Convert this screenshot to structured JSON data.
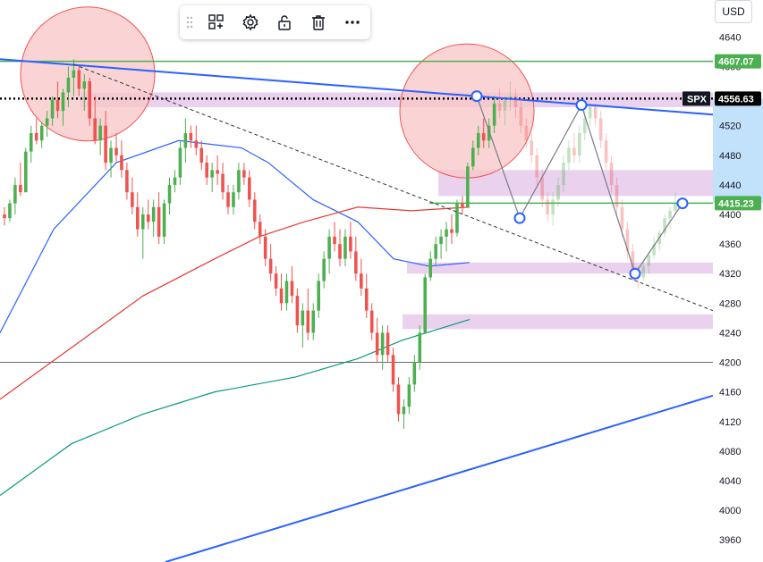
{
  "currency_button": "USD",
  "toolbar": {
    "items": [
      {
        "name": "grip-handle-icon"
      },
      {
        "name": "object-tree-icon"
      },
      {
        "name": "settings-icon"
      },
      {
        "name": "unlock-icon"
      },
      {
        "name": "delete-icon"
      },
      {
        "name": "more-icon"
      }
    ]
  },
  "colors": {
    "up": "#26a69a",
    "up_candle": "#4caf50",
    "down": "#ef5350",
    "trend_blue": "#2962ff",
    "zone": "#e1bee7",
    "circle": "#f8c6c6",
    "hline_green": "#4caf50",
    "ema_blue": "#2962ff",
    "ema_red": "#e53935",
    "ema_green": "#089981"
  },
  "chart_data": {
    "type": "candlestick",
    "symbol": "SPX",
    "y_ticks": [
      3960,
      4000,
      4040,
      4080,
      4120,
      4160,
      4200,
      4240,
      4280,
      4320,
      4360,
      4400,
      4440,
      4480,
      4520,
      4560,
      4600,
      4640
    ],
    "ylim": [
      3930,
      4690
    ],
    "price_labels": [
      {
        "text": "4607.07",
        "value": 4607.07,
        "style": "green"
      },
      {
        "text": "4556.63",
        "value": 4556.63,
        "style": "black"
      },
      {
        "text": "4415.23",
        "value": 4415.23,
        "style": "green"
      },
      {
        "text": "SPX",
        "value": 4556.63,
        "style": "tag"
      }
    ],
    "candles": [
      [
        4400,
        4410,
        4385,
        4395
      ],
      [
        4395,
        4420,
        4390,
        4415
      ],
      [
        4415,
        4450,
        4400,
        4440
      ],
      [
        4440,
        4470,
        4425,
        4430
      ],
      [
        4430,
        4490,
        4430,
        4485
      ],
      [
        4485,
        4520,
        4470,
        4510
      ],
      [
        4510,
        4530,
        4495,
        4500
      ],
      [
        4500,
        4525,
        4490,
        4520
      ],
      [
        4520,
        4540,
        4505,
        4530
      ],
      [
        4530,
        4560,
        4520,
        4555
      ],
      [
        4555,
        4580,
        4530,
        4540
      ],
      [
        4540,
        4570,
        4520,
        4565
      ],
      [
        4565,
        4600,
        4545,
        4585
      ],
      [
        4585,
        4610,
        4560,
        4595
      ],
      [
        4595,
        4600,
        4560,
        4570
      ],
      [
        4570,
        4590,
        4540,
        4580
      ],
      [
        4580,
        4585,
        4520,
        4530
      ],
      [
        4530,
        4560,
        4495,
        4500
      ],
      [
        4500,
        4530,
        4480,
        4520
      ],
      [
        4520,
        4540,
        4460,
        4470
      ],
      [
        4470,
        4500,
        4450,
        4490
      ],
      [
        4490,
        4510,
        4470,
        4480
      ],
      [
        4480,
        4500,
        4450,
        4460
      ],
      [
        4460,
        4470,
        4420,
        4430
      ],
      [
        4430,
        4450,
        4400,
        4410
      ],
      [
        4410,
        4430,
        4370,
        4380
      ],
      [
        4380,
        4410,
        4340,
        4400
      ],
      [
        4400,
        4420,
        4380,
        4390
      ],
      [
        4390,
        4420,
        4370,
        4410
      ],
      [
        4410,
        4430,
        4360,
        4370
      ],
      [
        4370,
        4420,
        4360,
        4415
      ],
      [
        4415,
        4450,
        4400,
        4440
      ],
      [
        4440,
        4460,
        4430,
        4450
      ],
      [
        4450,
        4500,
        4440,
        4490
      ],
      [
        4490,
        4530,
        4470,
        4510
      ],
      [
        4510,
        4520,
        4490,
        4500
      ],
      [
        4500,
        4520,
        4480,
        4490
      ],
      [
        4490,
        4500,
        4460,
        4470
      ],
      [
        4470,
        4480,
        4440,
        4450
      ],
      [
        4450,
        4470,
        4430,
        4460
      ],
      [
        4460,
        4480,
        4440,
        4455
      ],
      [
        4455,
        4470,
        4420,
        4430
      ],
      [
        4430,
        4440,
        4400,
        4410
      ],
      [
        4410,
        4440,
        4400,
        4430
      ],
      [
        4430,
        4470,
        4420,
        4460
      ],
      [
        4460,
        4470,
        4440,
        4450
      ],
      [
        4450,
        4460,
        4410,
        4420
      ],
      [
        4420,
        4430,
        4380,
        4390
      ],
      [
        4390,
        4400,
        4360,
        4370
      ],
      [
        4370,
        4380,
        4330,
        4340
      ],
      [
        4340,
        4360,
        4310,
        4320
      ],
      [
        4320,
        4330,
        4290,
        4300
      ],
      [
        4300,
        4320,
        4270,
        4280
      ],
      [
        4280,
        4320,
        4270,
        4310
      ],
      [
        4310,
        4330,
        4280,
        4290
      ],
      [
        4290,
        4300,
        4240,
        4250
      ],
      [
        4250,
        4280,
        4220,
        4270
      ],
      [
        4270,
        4300,
        4230,
        4240
      ],
      [
        4240,
        4280,
        4230,
        4270
      ],
      [
        4270,
        4320,
        4260,
        4310
      ],
      [
        4310,
        4350,
        4300,
        4340
      ],
      [
        4340,
        4380,
        4320,
        4370
      ],
      [
        4370,
        4390,
        4350,
        4360
      ],
      [
        4360,
        4380,
        4330,
        4340
      ],
      [
        4340,
        4380,
        4330,
        4370
      ],
      [
        4370,
        4390,
        4340,
        4350
      ],
      [
        4350,
        4370,
        4310,
        4320
      ],
      [
        4320,
        4340,
        4290,
        4300
      ],
      [
        4300,
        4320,
        4260,
        4270
      ],
      [
        4270,
        4280,
        4230,
        4240
      ],
      [
        4240,
        4260,
        4200,
        4210
      ],
      [
        4210,
        4250,
        4190,
        4240
      ],
      [
        4240,
        4250,
        4200,
        4210
      ],
      [
        4210,
        4220,
        4160,
        4170
      ],
      [
        4170,
        4180,
        4120,
        4130
      ],
      [
        4130,
        4150,
        4110,
        4140
      ],
      [
        4140,
        4180,
        4130,
        4170
      ],
      [
        4170,
        4210,
        4160,
        4200
      ],
      [
        4200,
        4250,
        4190,
        4240
      ],
      [
        4240,
        4320,
        4240,
        4315
      ],
      [
        4315,
        4350,
        4310,
        4340
      ],
      [
        4340,
        4370,
        4330,
        4360
      ],
      [
        4360,
        4380,
        4340,
        4370
      ],
      [
        4370,
        4390,
        4350,
        4380
      ],
      [
        4380,
        4400,
        4360,
        4375
      ],
      [
        4375,
        4420,
        4370,
        4415
      ],
      [
        4415,
        4425,
        4400,
        4410
      ],
      [
        4410,
        4470,
        4410,
        4465
      ],
      [
        4465,
        4500,
        4460,
        4490
      ],
      [
        4490,
        4520,
        4480,
        4510
      ],
      [
        4510,
        4530,
        4490,
        4500
      ],
      [
        4500,
        4530,
        4490,
        4520
      ],
      [
        4520,
        4560,
        4510,
        4550
      ],
      [
        4550,
        4570,
        4530,
        4540
      ],
      [
        4540,
        4560,
        4520,
        4555
      ],
      [
        4555,
        4580,
        4540,
        4560
      ],
      [
        4560,
        4570,
        4530,
        4545
      ],
      [
        4545,
        4555,
        4510,
        4520
      ],
      [
        4520,
        4530,
        4490,
        4500
      ],
      [
        4500,
        4510,
        4470,
        4480
      ],
      [
        4480,
        4490,
        4440,
        4450
      ],
      [
        4450,
        4460,
        4410,
        4420
      ],
      [
        4420,
        4430,
        4390,
        4400
      ],
      [
        4400,
        4430,
        4385,
        4420
      ],
      [
        4420,
        4450,
        4410,
        4440
      ],
      [
        4440,
        4480,
        4430,
        4470
      ],
      [
        4470,
        4500,
        4460,
        4490
      ],
      [
        4490,
        4510,
        4470,
        4480
      ],
      [
        4480,
        4520,
        4470,
        4510
      ],
      [
        4510,
        4540,
        4500,
        4530
      ],
      [
        4530,
        4550,
        4520,
        4545
      ],
      [
        4545,
        4550,
        4520,
        4530
      ],
      [
        4530,
        4540,
        4490,
        4500
      ],
      [
        4500,
        4510,
        4460,
        4470
      ],
      [
        4470,
        4480,
        4430,
        4440
      ],
      [
        4440,
        4450,
        4400,
        4410
      ],
      [
        4410,
        4420,
        4370,
        4380
      ],
      [
        4380,
        4390,
        4340,
        4350
      ],
      [
        4350,
        4360,
        4310,
        4320
      ],
      [
        4320,
        4330,
        4300,
        4315
      ],
      [
        4315,
        4340,
        4310,
        4330
      ],
      [
        4330,
        4350,
        4320,
        4345
      ],
      [
        4345,
        4370,
        4340,
        4360
      ],
      [
        4360,
        4380,
        4350,
        4375
      ],
      [
        4375,
        4400,
        4370,
        4395
      ],
      [
        4395,
        4410,
        4380,
        4405
      ],
      [
        4405,
        4430,
        4400,
        4415
      ]
    ],
    "candle_x_range": [
      5,
      755
    ],
    "faded_from_index": 93,
    "ema_blue": [
      [
        0,
        4240
      ],
      [
        60,
        4380
      ],
      [
        130,
        4470
      ],
      [
        200,
        4500
      ],
      [
        270,
        4490
      ],
      [
        300,
        4470
      ],
      [
        350,
        4420
      ],
      [
        400,
        4390
      ],
      [
        440,
        4340
      ],
      [
        480,
        4330
      ],
      [
        525,
        4335
      ]
    ],
    "ema_red": [
      [
        0,
        4150
      ],
      [
        80,
        4220
      ],
      [
        160,
        4290
      ],
      [
        240,
        4340
      ],
      [
        290,
        4370
      ],
      [
        340,
        4390
      ],
      [
        400,
        4410
      ],
      [
        460,
        4405
      ],
      [
        525,
        4410
      ]
    ],
    "ema_green": [
      [
        0,
        4020
      ],
      [
        80,
        4090
      ],
      [
        160,
        4130
      ],
      [
        240,
        4160
      ],
      [
        330,
        4180
      ],
      [
        400,
        4205
      ],
      [
        450,
        4230
      ],
      [
        525,
        4258
      ]
    ],
    "trend_lines": [
      {
        "style": "solid-blue",
        "from": [
          0,
          4610
        ],
        "to": [
          797,
          4535
        ]
      },
      {
        "style": "solid-blue",
        "from": [
          185,
          3930
        ],
        "to": [
          797,
          4155
        ]
      },
      {
        "style": "dashed-black",
        "from": [
          82,
          4603
        ],
        "to": [
          797,
          4270
        ]
      },
      {
        "style": "zigzag-gray",
        "points": [
          [
            533,
            4560
          ],
          [
            581,
            4395
          ],
          [
            650,
            4548
          ],
          [
            710,
            4320
          ],
          [
            763,
            4415
          ]
        ]
      }
    ],
    "hlines": [
      {
        "value": 4607.07,
        "style": "green"
      },
      {
        "value": 4556.63,
        "style": "dotted-black"
      },
      {
        "value": 4415.23,
        "style": "green",
        "x_from": 480
      },
      {
        "value": 4200,
        "style": "thin-black"
      }
    ],
    "zones": [
      {
        "top": 4565,
        "bottom": 4545,
        "x_from": 90
      },
      {
        "top": 4460,
        "bottom": 4425,
        "x_from": 490
      },
      {
        "top": 4335,
        "bottom": 4320,
        "x_from": 455
      },
      {
        "top": 4265,
        "bottom": 4245,
        "x_from": 450
      }
    ],
    "circles": [
      {
        "center": [
          98,
          4590
        ],
        "r": 75
      },
      {
        "center": [
          522,
          4540
        ],
        "r": 75
      }
    ],
    "markers": [
      [
        533,
        4560
      ],
      [
        581,
        4395
      ],
      [
        650,
        4548
      ],
      [
        710,
        4320
      ],
      [
        763,
        4415
      ]
    ]
  }
}
